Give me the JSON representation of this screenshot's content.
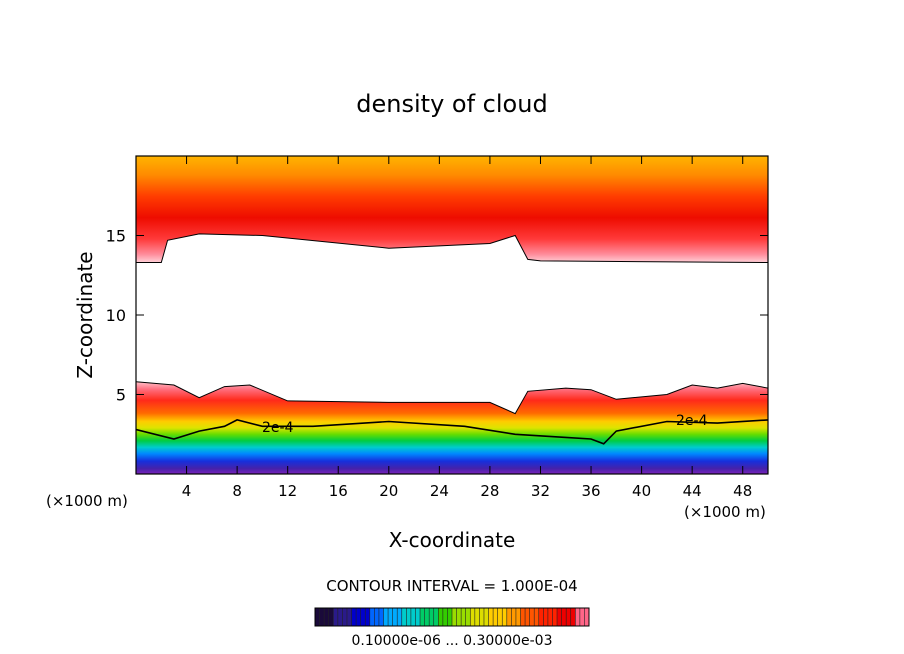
{
  "chart_data": {
    "type": "contour",
    "title": "density of cloud",
    "xlabel": "X-coordinate",
    "ylabel": "Z-coordinate",
    "x_unit": "(×1000 m)",
    "z_unit": "(×1000 m)",
    "xlim": [
      0,
      50
    ],
    "ylim": [
      0,
      20
    ],
    "x_ticks": [
      4,
      8,
      12,
      16,
      20,
      24,
      28,
      32,
      36,
      40,
      44,
      48
    ],
    "y_ticks": [
      5,
      10,
      15
    ],
    "contour_interval_text": "CONTOUR INTERVAL = 1.000E-04",
    "contour_labels": [
      "2e-4",
      "2e-4"
    ],
    "colorbar_label": "0.10000e-06 ... 0.30000e-03",
    "colorbar_colors": [
      "#1a0a3a",
      "#2a1a8a",
      "#0000cc",
      "#0066ff",
      "#00aaff",
      "#00cccc",
      "#00cc66",
      "#33cc00",
      "#99dd00",
      "#dddd00",
      "#ffcc00",
      "#ff9900",
      "#ff5500",
      "#ff2200",
      "#ee0000",
      "#ff6688"
    ],
    "cloud_layers": [
      {
        "name": "upper",
        "z_bottom_approx": 13.3,
        "z_top": 20
      },
      {
        "name": "lower",
        "z_bottom": 0.3,
        "z_top_approx": 5.5
      }
    ],
    "upper_boundary": [
      [
        0,
        13.3
      ],
      [
        2,
        13.3
      ],
      [
        2.5,
        14.7
      ],
      [
        5,
        15.1
      ],
      [
        10,
        15.0
      ],
      [
        20,
        14.2
      ],
      [
        28,
        14.5
      ],
      [
        30,
        15.0
      ],
      [
        31,
        13.5
      ],
      [
        32,
        13.4
      ],
      [
        50,
        13.3
      ]
    ],
    "lower_boundary": [
      [
        0,
        5.8
      ],
      [
        3,
        5.6
      ],
      [
        5,
        4.8
      ],
      [
        7,
        5.5
      ],
      [
        9,
        5.6
      ],
      [
        12,
        4.6
      ],
      [
        20,
        4.5
      ],
      [
        28,
        4.5
      ],
      [
        30,
        3.8
      ],
      [
        31,
        5.2
      ],
      [
        34,
        5.4
      ],
      [
        36,
        5.3
      ],
      [
        38,
        4.7
      ],
      [
        42,
        5.0
      ],
      [
        44,
        5.6
      ],
      [
        46,
        5.4
      ],
      [
        48,
        5.7
      ],
      [
        50,
        5.4
      ]
    ],
    "line_2e4": [
      [
        0,
        2.8
      ],
      [
        3,
        2.2
      ],
      [
        5,
        2.7
      ],
      [
        7,
        3.0
      ],
      [
        8,
        3.4
      ],
      [
        10,
        3.0
      ],
      [
        14,
        3.0
      ],
      [
        20,
        3.3
      ],
      [
        26,
        3.0
      ],
      [
        30,
        2.5
      ],
      [
        34,
        2.3
      ],
      [
        36,
        2.2
      ],
      [
        37,
        1.9
      ],
      [
        38,
        2.7
      ],
      [
        42,
        3.3
      ],
      [
        46,
        3.2
      ],
      [
        50,
        3.4
      ]
    ]
  }
}
